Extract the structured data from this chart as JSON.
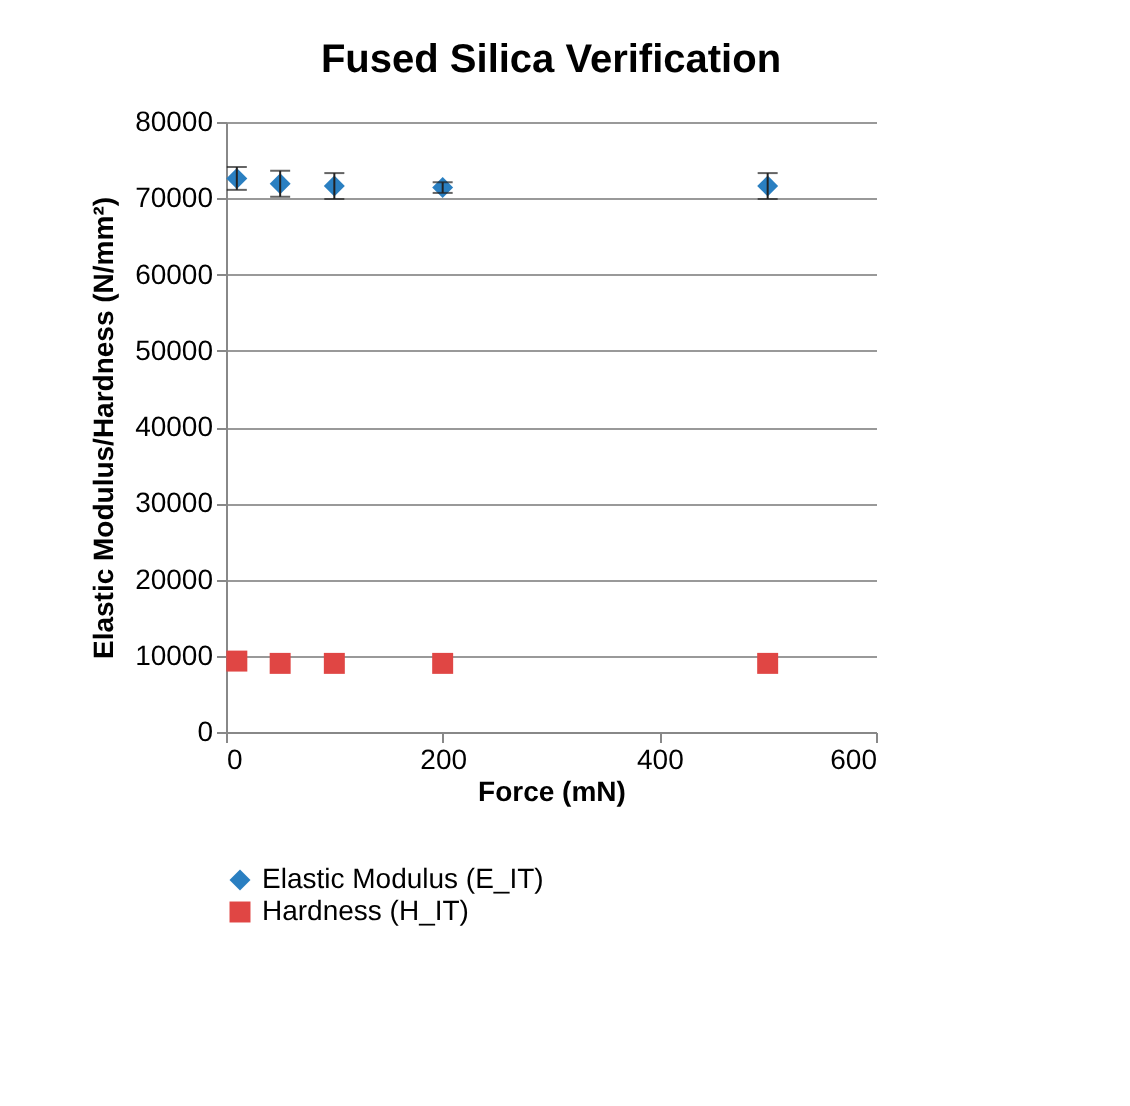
{
  "chart_data": {
    "type": "scatter",
    "title": "Fused Silica Verification",
    "xlabel": "Force (mN)",
    "ylabel": "Elastic Modulus/Hardness (N/mm²)",
    "x": [
      10,
      50,
      100,
      200,
      500
    ],
    "series": [
      {
        "name": "Elastic Modulus (E_IT)",
        "color": "#2a7fc1",
        "marker": "diamond",
        "values": [
          72600,
          71900,
          71600,
          71400,
          71600
        ],
        "errors": [
          1500,
          1700,
          1700,
          700,
          1700
        ]
      },
      {
        "name": "Hardness (H_IT)",
        "color": "#e04644",
        "marker": "square",
        "values": [
          9300,
          9000,
          9000,
          9000,
          9000
        ]
      }
    ],
    "xlim": [
      0,
      600
    ],
    "xticks": [
      0,
      200,
      400,
      600
    ],
    "ylim": [
      0,
      80000
    ],
    "yticks": [
      0,
      10000,
      20000,
      30000,
      40000,
      50000,
      60000,
      70000,
      80000
    ],
    "grid": "y",
    "legend": "bottom"
  }
}
